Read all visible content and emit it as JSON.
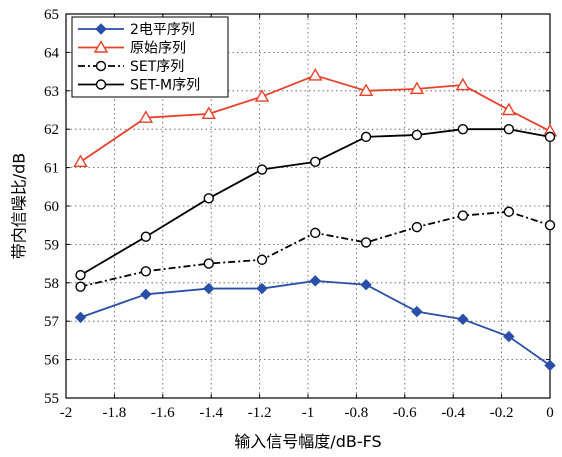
{
  "chart_data": {
    "type": "line",
    "xlabel": "输入信号幅度/dB-FS",
    "ylabel": "带内信噪比/dB",
    "xlim": [
      -2,
      0
    ],
    "ylim": [
      55,
      65
    ],
    "x_ticks": [
      -2,
      -1.8,
      -1.6,
      -1.4,
      -1.2,
      -1,
      -0.8,
      -0.6,
      -0.4,
      -0.2,
      0
    ],
    "x_tick_labels": [
      "-2",
      "-1.8",
      "-1.6",
      "-1.4",
      "-1.2",
      "-1",
      "-0.8",
      "-0.6",
      "-0.4",
      "-0.2",
      "0"
    ],
    "y_ticks": [
      55,
      56,
      57,
      58,
      59,
      60,
      61,
      62,
      63,
      64,
      65
    ],
    "y_tick_labels": [
      "55",
      "56",
      "57",
      "58",
      "59",
      "60",
      "61",
      "62",
      "63",
      "64",
      "65"
    ],
    "grid": true,
    "grid_style": "dotted",
    "legend_position": "top-left",
    "series": [
      {
        "name": "2电平序列",
        "color": "#2a4fa8",
        "line_style": "solid",
        "marker": "diamond-filled",
        "x": [
          -1.94,
          -1.67,
          -1.41,
          -1.19,
          -0.97,
          -0.76,
          -0.55,
          -0.36,
          -0.17,
          0
        ],
        "y": [
          57.1,
          57.7,
          57.85,
          57.85,
          58.05,
          57.95,
          57.25,
          57.05,
          56.6,
          55.85
        ]
      },
      {
        "name": "原始序列",
        "color": "#e8412a",
        "line_style": "solid",
        "marker": "triangle-open",
        "x": [
          -1.94,
          -1.67,
          -1.41,
          -1.19,
          -0.97,
          -0.76,
          -0.55,
          -0.36,
          -0.17,
          0
        ],
        "y": [
          61.15,
          62.3,
          62.4,
          62.85,
          63.4,
          63.0,
          63.05,
          63.15,
          62.5,
          61.95
        ]
      },
      {
        "name": "SET序列",
        "color": "#000000",
        "line_style": "dashdot",
        "marker": "circle-open",
        "x": [
          -1.94,
          -1.67,
          -1.41,
          -1.19,
          -0.97,
          -0.76,
          -0.55,
          -0.36,
          -0.17,
          0
        ],
        "y": [
          57.9,
          58.3,
          58.5,
          58.6,
          59.3,
          59.05,
          59.45,
          59.75,
          59.85,
          59.5
        ]
      },
      {
        "name": "SET-M序列",
        "color": "#000000",
        "line_style": "solid",
        "marker": "circle-open",
        "x": [
          -1.94,
          -1.67,
          -1.41,
          -1.19,
          -0.97,
          -0.76,
          -0.55,
          -0.36,
          -0.17,
          0
        ],
        "y": [
          58.2,
          59.2,
          60.2,
          60.95,
          61.15,
          61.8,
          61.85,
          62.0,
          62.0,
          61.8
        ]
      }
    ]
  }
}
